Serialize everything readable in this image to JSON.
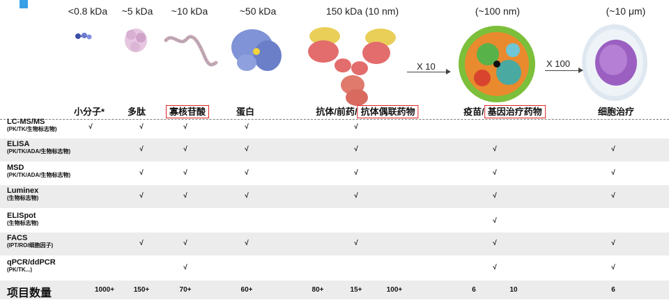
{
  "sizes": [
    "<0.8 kDa",
    "~5 kDa",
    "~10 kDa",
    "~50 kDa",
    "150 kDa (10 nm)",
    "(~100 nm)",
    "(~10 μm)"
  ],
  "arrows": [
    "X 10",
    "X 100"
  ],
  "categories": {
    "small_molecule": "小分子*",
    "peptide": "多肽",
    "oligonucleotide": "寡核苷酸",
    "protein": "蛋白",
    "antibody_prefix": "抗体/前药/",
    "adc": "抗体偶联药物",
    "vaccine_prefix": "疫苗/",
    "gene_therapy": "基因治疗药物",
    "cell_therapy": "细胞治疗"
  },
  "rows": [
    {
      "label": "LC-MS/MS",
      "sub": "(PK/TK/生物标志物)"
    },
    {
      "label": "ELISA",
      "sub": "(PK/TK/ADA/生物标志物)"
    },
    {
      "label": "MSD",
      "sub": "(PK/TK/ADA/生物标志物)"
    },
    {
      "label": "Luminex",
      "sub": "(生物标志物)"
    },
    {
      "label": "ELISpot",
      "sub": "(生物标志物)"
    },
    {
      "label": "FACS",
      "sub": "(IPT/RO/细胞因子)"
    },
    {
      "label": "qPCR/ddPCR",
      "sub": "(PK/TK...)"
    }
  ],
  "check_mark": "√",
  "count_label": "项目数量",
  "counts": [
    "1000+",
    "150+",
    "70+",
    "60+",
    "80+",
    "15+",
    "100+",
    "6",
    "10",
    "6"
  ],
  "colors": {
    "highlight_box": "#dd2222",
    "shade": "#ececec",
    "accent": "#3aa0e6"
  }
}
